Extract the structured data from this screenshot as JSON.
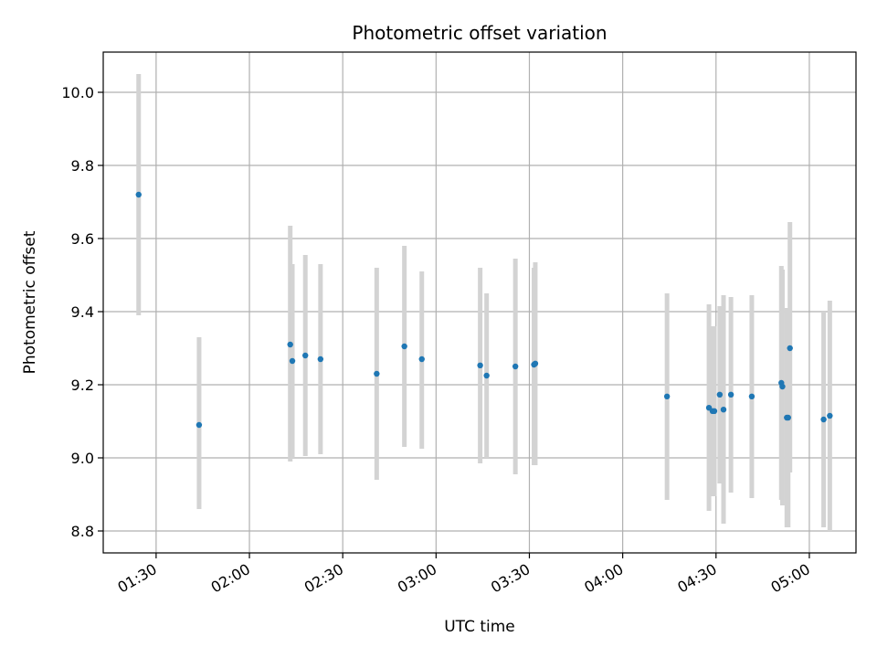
{
  "chart_data": {
    "type": "scatter",
    "title": "Photometric offset variation",
    "xlabel": "UTC time",
    "ylabel": "Photometric offset",
    "x_ticks": [
      "01:30",
      "02:00",
      "02:30",
      "03:00",
      "03:30",
      "04:00",
      "04:30",
      "05:00"
    ],
    "y_ticks": [
      "8.8",
      "9.0",
      "9.2",
      "9.4",
      "9.6",
      "9.8",
      "10.0"
    ],
    "xlim": [
      "01:13",
      "05:15"
    ],
    "ylim": [
      8.74,
      10.11
    ],
    "grid": true,
    "colors": {
      "point": "#1f77b4",
      "errorbar": "#d3d3d3",
      "grid": "#b0b0b0"
    },
    "points": [
      {
        "x": "01:24:23",
        "y": 9.72,
        "ylow": 9.39,
        "yhigh": 10.05
      },
      {
        "x": "01:43:49",
        "y": 9.09,
        "ylow": 8.86,
        "yhigh": 9.33
      },
      {
        "x": "02:13:07",
        "y": 9.31,
        "ylow": 8.99,
        "yhigh": 9.635
      },
      {
        "x": "02:13:48",
        "y": 9.265,
        "ylow": 9.0,
        "yhigh": 9.53
      },
      {
        "x": "02:17:58",
        "y": 9.28,
        "ylow": 9.005,
        "yhigh": 9.555
      },
      {
        "x": "02:22:51",
        "y": 9.27,
        "ylow": 9.01,
        "yhigh": 9.53
      },
      {
        "x": "02:40:55",
        "y": 9.23,
        "ylow": 8.94,
        "yhigh": 9.52
      },
      {
        "x": "02:49:49",
        "y": 9.305,
        "ylow": 9.03,
        "yhigh": 9.58
      },
      {
        "x": "02:55:25",
        "y": 9.27,
        "ylow": 9.025,
        "yhigh": 9.51
      },
      {
        "x": "03:14:11",
        "y": 9.253,
        "ylow": 8.985,
        "yhigh": 9.52
      },
      {
        "x": "03:16:15",
        "y": 9.225,
        "ylow": 9.0,
        "yhigh": 9.45
      },
      {
        "x": "03:25:30",
        "y": 9.25,
        "ylow": 8.955,
        "yhigh": 9.545
      },
      {
        "x": "03:31:29",
        "y": 9.255,
        "ylow": 8.98,
        "yhigh": 9.52
      },
      {
        "x": "03:31:54",
        "y": 9.258,
        "ylow": 8.98,
        "yhigh": 9.535
      },
      {
        "x": "04:14:15",
        "y": 9.168,
        "ylow": 8.885,
        "yhigh": 9.45
      },
      {
        "x": "04:27:44",
        "y": 9.137,
        "ylow": 8.855,
        "yhigh": 9.42
      },
      {
        "x": "04:28:53",
        "y": 9.128,
        "ylow": 8.895,
        "yhigh": 9.36
      },
      {
        "x": "04:29:28",
        "y": 9.128,
        "ylow": 8.895,
        "yhigh": 9.36
      },
      {
        "x": "04:31:12",
        "y": 9.173,
        "ylow": 8.93,
        "yhigh": 9.415
      },
      {
        "x": "04:32:25",
        "y": 9.132,
        "ylow": 8.82,
        "yhigh": 9.445
      },
      {
        "x": "04:34:48",
        "y": 9.173,
        "ylow": 8.905,
        "yhigh": 9.44
      },
      {
        "x": "04:41:30",
        "y": 9.168,
        "ylow": 8.89,
        "yhigh": 9.445
      },
      {
        "x": "04:51:00",
        "y": 9.205,
        "ylow": 8.885,
        "yhigh": 9.525
      },
      {
        "x": "04:51:21",
        "y": 9.195,
        "ylow": 8.87,
        "yhigh": 9.515
      },
      {
        "x": "04:52:46",
        "y": 9.11,
        "ylow": 8.81,
        "yhigh": 9.41
      },
      {
        "x": "04:53:12",
        "y": 9.11,
        "ylow": 8.81,
        "yhigh": 9.41
      },
      {
        "x": "04:53:46",
        "y": 9.3,
        "ylow": 8.96,
        "yhigh": 9.645
      },
      {
        "x": "05:04:36",
        "y": 9.105,
        "ylow": 8.81,
        "yhigh": 9.4
      },
      {
        "x": "05:06:35",
        "y": 9.115,
        "ylow": 8.8,
        "yhigh": 9.43
      }
    ]
  }
}
